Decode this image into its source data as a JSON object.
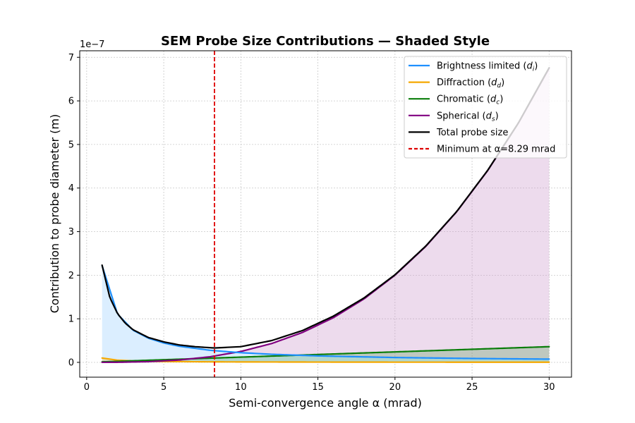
{
  "chart_data": {
    "type": "line",
    "title": "SEM Probe Size Contributions — Shaded Style",
    "xlabel": "Semi-convergence angle α (mrad)",
    "ylabel": "Contribution to probe diameter (m)",
    "y_offset_label": "1e−7",
    "y_scale": 1e-07,
    "xlim": [
      -0.45,
      31.45
    ],
    "ylim": [
      -0.34,
      7.15
    ],
    "x_ticks": [
      0,
      5,
      10,
      15,
      20,
      25,
      30
    ],
    "x_tick_labels": [
      "0",
      "5",
      "10",
      "15",
      "20",
      "25",
      "30"
    ],
    "y_ticks": [
      0,
      1,
      2,
      3,
      4,
      5,
      6,
      7
    ],
    "y_tick_labels": [
      "0",
      "1",
      "2",
      "3",
      "4",
      "5",
      "6",
      "7"
    ],
    "grid": true,
    "legend_position": "top-right",
    "x_range": [
      1,
      30
    ],
    "series": [
      {
        "key": "di",
        "name": "Brightness limited (d_i)",
        "legend_base": "Brightness limited (",
        "legend_sym": "d",
        "legend_sub": "i",
        "color": "#1e90ff",
        "fill": "#dbeeff",
        "x": [
          1,
          2,
          3,
          4,
          5,
          6,
          8,
          10,
          12,
          15,
          20,
          25,
          30
        ],
        "y": [
          2.22,
          1.11,
          0.74,
          0.555,
          0.444,
          0.37,
          0.2775,
          0.222,
          0.185,
          0.148,
          0.111,
          0.0888,
          0.074
        ]
      },
      {
        "key": "dd",
        "name": "Diffraction (d_d)",
        "legend_base": "Diffraction (",
        "legend_sym": "d",
        "legend_sub": "d",
        "color": "#f5a800",
        "fill": "#f5a800",
        "x": [
          1,
          2,
          3,
          4,
          5,
          8,
          10,
          15,
          20,
          25,
          30
        ],
        "y": [
          0.1,
          0.05,
          0.033,
          0.025,
          0.02,
          0.0125,
          0.01,
          0.0067,
          0.005,
          0.004,
          0.0033
        ]
      },
      {
        "key": "dc",
        "name": "Chromatic (d_c)",
        "legend_base": "Chromatic (",
        "legend_sym": "d",
        "legend_sub": "c",
        "color": "#0a7d0a",
        "fill": "#0a7d0a",
        "x": [
          1,
          5,
          10,
          15,
          20,
          25,
          30
        ],
        "y": [
          0.012,
          0.06,
          0.12,
          0.18,
          0.24,
          0.3,
          0.36
        ]
      },
      {
        "key": "ds",
        "name": "Spherical (d_s)",
        "legend_base": "Spherical (",
        "legend_sym": "d",
        "legend_sub": "s",
        "color": "#800080",
        "fill": "#cc99cc",
        "x": [
          1,
          2,
          4,
          6,
          8,
          10,
          12,
          14,
          16,
          18,
          20,
          22,
          24,
          26,
          28,
          30
        ],
        "y": [
          0.0003,
          0.002,
          0.016,
          0.054,
          0.128,
          0.25,
          0.432,
          0.686,
          1.024,
          1.458,
          2.0,
          2.662,
          3.456,
          4.394,
          5.488,
          6.75
        ]
      },
      {
        "key": "total",
        "name": "Total probe size",
        "legend_base": "Total probe size",
        "legend_sym": "",
        "legend_sub": "",
        "color": "#000000",
        "fill": "",
        "x": [
          1,
          1.5,
          2,
          2.5,
          3,
          4,
          5,
          6,
          7,
          8.29,
          10,
          12,
          14,
          16,
          18,
          20,
          22,
          24,
          26,
          28,
          30
        ],
        "y": [
          2.23,
          1.49,
          1.12,
          0.9,
          0.75,
          0.57,
          0.47,
          0.4,
          0.36,
          0.33,
          0.36,
          0.5,
          0.73,
          1.06,
          1.48,
          2.01,
          2.67,
          3.46,
          4.4,
          5.49,
          6.76
        ]
      }
    ],
    "minimum": {
      "x": 8.29,
      "label": "Minimum at α=8.29 mrad",
      "color": "#dd0000"
    }
  }
}
